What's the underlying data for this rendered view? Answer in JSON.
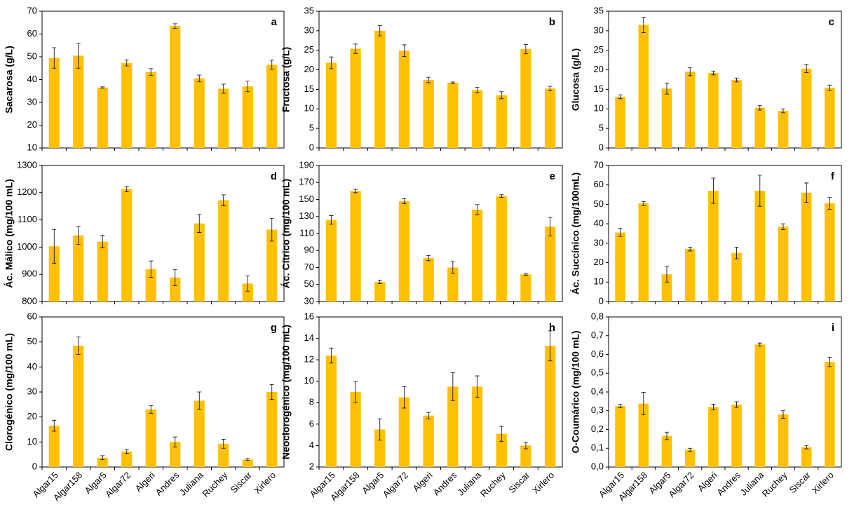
{
  "chart_data": [
    {
      "type": "bar",
      "panel": "a",
      "ylabel": "Sacarosa (g/L)",
      "color": "#ffc000",
      "categories": [
        null,
        null,
        null,
        null,
        null,
        null,
        null,
        null,
        null,
        null
      ],
      "values": [
        49.5,
        50.5,
        36.5,
        47.3,
        43.3,
        63.5,
        40.5,
        36,
        37,
        46.5
      ],
      "errors": [
        4.5,
        5.5,
        0.3,
        1.3,
        1.5,
        1,
        1.5,
        2,
        2.3,
        2
      ],
      "ylim": [
        10,
        70
      ],
      "yticks": [
        10,
        20,
        30,
        40,
        50,
        60,
        70
      ]
    },
    {
      "type": "bar",
      "panel": "b",
      "ylabel": "Fructosa (g/L)",
      "color": "#ffc000",
      "categories": [
        null,
        null,
        null,
        null,
        null,
        null,
        null,
        null,
        null,
        null
      ],
      "values": [
        21.8,
        25.4,
        30,
        24.9,
        17.4,
        16.7,
        14.8,
        13.5,
        25.3,
        15.2
      ],
      "errors": [
        1.5,
        1.2,
        1.3,
        1.5,
        0.7,
        0.2,
        0.7,
        0.9,
        1.2,
        0.6
      ],
      "ylim": [
        0,
        35
      ],
      "yticks": [
        0,
        5,
        10,
        15,
        20,
        25,
        30,
        35
      ]
    },
    {
      "type": "bar",
      "panel": "c",
      "ylabel": "Glucosa (g/L)",
      "color": "#ffc000",
      "categories": [
        null,
        null,
        null,
        null,
        null,
        null,
        null,
        null,
        null,
        null
      ],
      "values": [
        13.1,
        31.5,
        15.2,
        19.5,
        19.2,
        17.4,
        10.3,
        9.5,
        20.3,
        15.4
      ],
      "errors": [
        0.5,
        2,
        1.4,
        1,
        0.5,
        0.5,
        0.6,
        0.5,
        1,
        0.7
      ],
      "ylim": [
        0,
        35
      ],
      "yticks": [
        0,
        5,
        10,
        15,
        20,
        25,
        30,
        35
      ]
    },
    {
      "type": "bar",
      "panel": "d",
      "ylabel": "Ác. Málico (mg/100 mL)",
      "color": "#ffc000",
      "categories": [
        null,
        null,
        null,
        null,
        null,
        null,
        null,
        null,
        null,
        null
      ],
      "values": [
        1003,
        1043,
        1020,
        1213,
        919,
        888,
        1087,
        1172,
        866,
        1064
      ],
      "errors": [
        62,
        33,
        23,
        10,
        30,
        30,
        33,
        20,
        28,
        42
      ],
      "ylim": [
        800,
        1300
      ],
      "yticks": [
        800,
        900,
        1000,
        1100,
        1200,
        1300
      ]
    },
    {
      "type": "bar",
      "panel": "e",
      "ylabel": "Ác. Cítrico (mg/100 mL)",
      "color": "#ffc000",
      "categories": [
        null,
        null,
        null,
        null,
        null,
        null,
        null,
        null,
        null,
        null
      ],
      "values": [
        126,
        160,
        53,
        148,
        81,
        70,
        138,
        154,
        62,
        118
      ],
      "errors": [
        5,
        2,
        2,
        3,
        3,
        7,
        6,
        1.5,
        1,
        11
      ],
      "ylim": [
        30,
        190
      ],
      "yticks": [
        30,
        50,
        70,
        90,
        110,
        130,
        150,
        170,
        190
      ]
    },
    {
      "type": "bar",
      "panel": "f",
      "ylabel": "Ác. Succínico (mg/100mL)",
      "color": "#ffc000",
      "categories": [
        null,
        null,
        null,
        null,
        null,
        null,
        null,
        null,
        null,
        null
      ],
      "values": [
        35.5,
        50.5,
        14,
        27,
        57,
        25,
        57,
        38.5,
        56,
        50.5
      ],
      "errors": [
        2,
        1,
        4,
        1,
        6.5,
        3,
        8,
        1.5,
        5,
        3
      ],
      "ylim": [
        0,
        70
      ],
      "yticks": [
        0,
        10,
        20,
        30,
        40,
        50,
        60,
        70
      ]
    },
    {
      "type": "bar",
      "panel": "g",
      "ylabel": "Clorogénico (mg/100 mL)",
      "color": "#ffc000",
      "categories": [
        "Algar15",
        "Algar158",
        "Algar5",
        "Algar72",
        "Algeri",
        "Andres",
        "Juliana",
        "Ruchey",
        "Siscar",
        "Xirlero"
      ],
      "values": [
        16.5,
        48.5,
        3.7,
        6.2,
        23,
        10,
        26.5,
        9.3,
        3,
        30
      ],
      "errors": [
        2.2,
        3.5,
        0.8,
        0.8,
        1.5,
        2,
        3.5,
        1.8,
        0.4,
        3
      ],
      "ylim": [
        0,
        60
      ],
      "yticks": [
        0,
        10,
        20,
        30,
        40,
        50,
        60
      ]
    },
    {
      "type": "bar",
      "panel": "h",
      "ylabel": "Neoclorogénico (mg/100 mL)",
      "color": "#ffc000",
      "categories": [
        "Algar15",
        "Algar158",
        "Algar5",
        "Algar72",
        "Algeri",
        "Andres",
        "Juliana",
        "Ruchey",
        "Siscar",
        "Xirlero"
      ],
      "values": [
        12.4,
        9,
        5.5,
        8.5,
        6.8,
        9.5,
        9.5,
        5.1,
        4,
        13.3
      ],
      "errors": [
        0.7,
        1,
        1,
        1,
        0.3,
        1.3,
        1,
        0.7,
        0.3,
        1.4
      ],
      "ylim": [
        2,
        16
      ],
      "yticks": [
        2,
        4,
        6,
        8,
        10,
        12,
        14,
        16
      ]
    },
    {
      "type": "bar",
      "panel": "i",
      "ylabel": "O-Coumárico (mg/100 mL)",
      "color": "#ffc000",
      "categories": [
        "Algar15",
        "Algar158",
        "Algar5",
        "Algar72",
        "Algeri",
        "Andres",
        "Juliana",
        "Ruchey",
        "Siscar",
        "Xirlero"
      ],
      "values": [
        0.325,
        0.338,
        0.166,
        0.092,
        0.32,
        0.333,
        0.653,
        0.28,
        0.105,
        0.56
      ],
      "errors": [
        0.008,
        0.06,
        0.02,
        0.008,
        0.015,
        0.015,
        0.008,
        0.02,
        0.008,
        0.025
      ],
      "ylim": [
        0,
        0.8
      ],
      "yticks": [
        {
          "value": 0,
          "label": "0,0"
        },
        {
          "value": 0.1,
          "label": "0,1"
        },
        {
          "value": 0.2,
          "label": "0,2"
        },
        {
          "value": 0.3,
          "label": "0,3"
        },
        {
          "value": 0.4,
          "label": "0,4"
        },
        {
          "value": 0.5,
          "label": "0,5"
        },
        {
          "value": 0.6,
          "label": "0,6"
        },
        {
          "value": 0.7,
          "label": "0,7"
        },
        {
          "value": 0.8,
          "label": "0,8"
        }
      ]
    }
  ]
}
